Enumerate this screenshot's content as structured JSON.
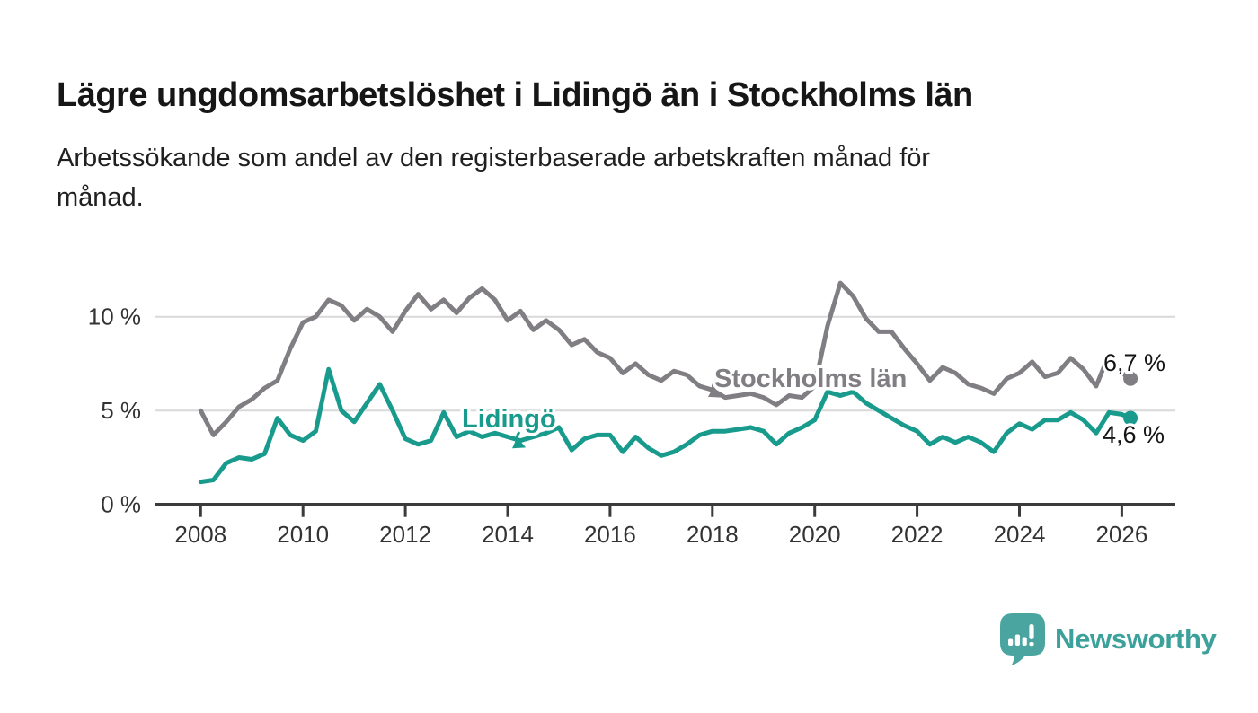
{
  "title": "Lägre ungdomsarbetslöshet i Lidingö än i Stockholms län",
  "subtitle": "Arbetssökande som andel av den registerbaserade arbetskraften månad för månad.",
  "subtitle_lines": [
    "Arbetssökande som andel av den registerbaserade arbetskraften månad för",
    "månad."
  ],
  "chart_data": {
    "type": "line",
    "unit": "%",
    "grid": "horizontal",
    "grid_color": "#d9d9d9",
    "axis_color": "#3b3b3b",
    "tick_text_color": "#333333",
    "end_label_color": "#141414",
    "x_start": 2008,
    "x_step_years": 0.25,
    "x_ticks": [
      2008,
      2010,
      2012,
      2014,
      2016,
      2018,
      2020,
      2022,
      2024,
      2026
    ],
    "y_ticks": [
      {
        "value": 0,
        "label": "0 %"
      },
      {
        "value": 5,
        "label": "5 %"
      },
      {
        "value": 10,
        "label": "10 %"
      }
    ],
    "ylim": [
      0,
      12.5
    ],
    "series": [
      {
        "name": "Stockholms län",
        "color": "#807e82",
        "end_label": "6,7 %",
        "final_x": 2026.17,
        "final_value": 6.7,
        "values": [
          5.0,
          3.7,
          4.4,
          5.2,
          5.6,
          6.2,
          6.6,
          8.3,
          9.7,
          10.0,
          10.9,
          10.6,
          9.8,
          10.4,
          10.0,
          9.2,
          10.3,
          11.2,
          10.4,
          10.9,
          10.2,
          11.0,
          11.5,
          10.9,
          9.8,
          10.3,
          9.3,
          9.8,
          9.3,
          8.5,
          8.8,
          8.1,
          7.8,
          7.0,
          7.5,
          6.9,
          6.6,
          7.1,
          6.9,
          6.3,
          6.1,
          5.7,
          5.8,
          5.9,
          5.7,
          5.3,
          5.8,
          5.7,
          6.3,
          9.5,
          11.8,
          11.1,
          9.9,
          9.2,
          9.2,
          8.3,
          7.5,
          6.6,
          7.3,
          7.0,
          6.4,
          6.2,
          5.9,
          6.7,
          7.0,
          7.6,
          6.8,
          7.0,
          7.8,
          7.2,
          6.3,
          8.0,
          7.0
        ]
      },
      {
        "name": "Lidingö",
        "color": "#189b8c",
        "end_label": "4,6 %",
        "final_x": 2026.17,
        "final_value": 4.6,
        "values": [
          1.2,
          1.3,
          2.2,
          2.5,
          2.4,
          2.7,
          4.6,
          3.7,
          3.4,
          3.9,
          7.2,
          5.0,
          4.4,
          5.4,
          6.4,
          5.0,
          3.5,
          3.2,
          3.4,
          4.9,
          3.6,
          3.9,
          3.6,
          3.8,
          3.6,
          3.4,
          3.6,
          3.8,
          4.1,
          2.9,
          3.5,
          3.7,
          3.7,
          2.8,
          3.6,
          3.0,
          2.6,
          2.8,
          3.2,
          3.7,
          3.9,
          3.9,
          4.0,
          4.1,
          3.9,
          3.2,
          3.8,
          4.1,
          4.5,
          6.0,
          5.8,
          6.0,
          5.4,
          5.0,
          4.6,
          4.2,
          3.9,
          3.2,
          3.6,
          3.3,
          3.6,
          3.3,
          2.8,
          3.8,
          4.3,
          4.0,
          4.5,
          4.5,
          4.9,
          4.5,
          3.8,
          4.9,
          4.8
        ]
      }
    ]
  },
  "branding": {
    "name": "Newsworthy",
    "wordmark_color": "#3ba19a",
    "icon_color": "#4aa49f"
  }
}
